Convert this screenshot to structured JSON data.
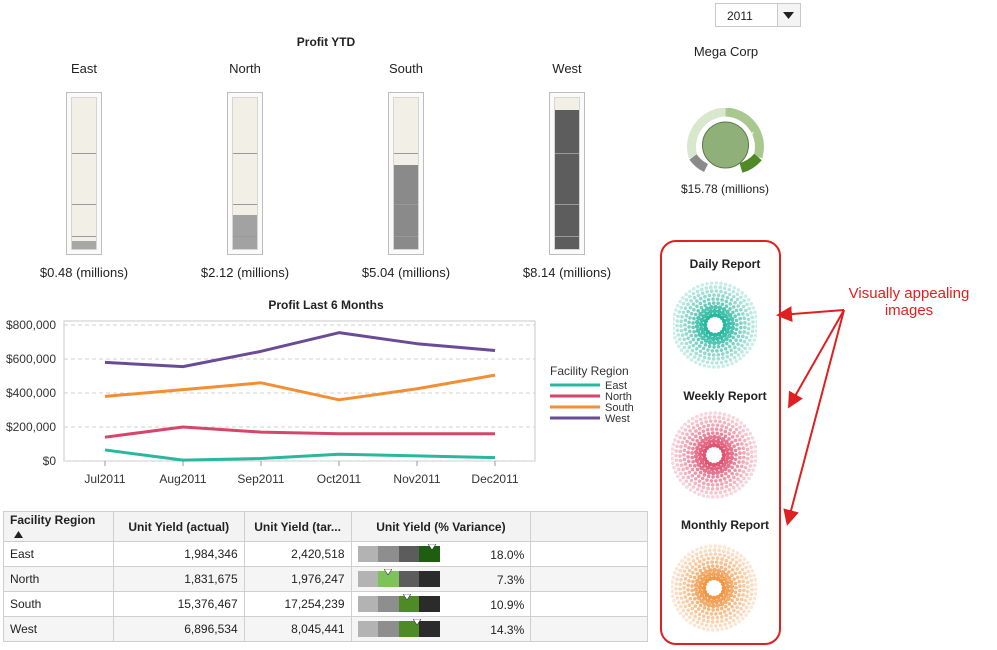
{
  "year_selector": {
    "value": "2011"
  },
  "company": {
    "name": "Mega Corp",
    "total_label": "$15.78 (millions)"
  },
  "profit_ytd": {
    "title": "Profit YTD",
    "regions": [
      {
        "name": "East",
        "label": "$0.48 (millions)",
        "fill": 0.05,
        "color": "#a7a7a7"
      },
      {
        "name": "North",
        "label": "$2.12 (millions)",
        "fill": 0.22,
        "color": "#a2a2a2"
      },
      {
        "name": "South",
        "label": "$5.04 (millions)",
        "fill": 0.55,
        "color": "#8a8a8a"
      },
      {
        "name": "West",
        "label": "$8.14 (millions)",
        "fill": 0.91,
        "color": "#5d5d5d"
      }
    ]
  },
  "chart_data": {
    "type": "line",
    "title": "Profit Last 6 Months",
    "categories": [
      "Jul2011",
      "Aug2011",
      "Sep2011",
      "Oct2011",
      "Nov2011",
      "Dec2011"
    ],
    "series": [
      {
        "name": "East",
        "color": "#2ab7a0",
        "values": [
          65000,
          5000,
          15000,
          40000,
          30000,
          20000
        ]
      },
      {
        "name": "North",
        "color": "#d5466a",
        "values": [
          140000,
          200000,
          170000,
          160000,
          160000,
          160000
        ]
      },
      {
        "name": "South",
        "color": "#f28e33",
        "values": [
          380000,
          420000,
          460000,
          360000,
          425000,
          505000
        ]
      },
      {
        "name": "West",
        "color": "#6a4c96",
        "values": [
          580000,
          555000,
          645000,
          755000,
          690000,
          650000
        ]
      }
    ],
    "yticks": [
      {
        "v": 0,
        "label": "$0"
      },
      {
        "v": 200000,
        "label": "$200,000"
      },
      {
        "v": 400000,
        "label": "$400,000"
      },
      {
        "v": 600000,
        "label": "$600,000"
      },
      {
        "v": 800000,
        "label": "$800,000"
      }
    ],
    "ylim": [
      0,
      800000
    ],
    "grid": true,
    "legend": {
      "title": "Facility Region",
      "position": "right"
    }
  },
  "table": {
    "columns": [
      "Facility Region",
      "Unit Yield (actual)",
      "Unit Yield (tar...",
      "Unit Yield (% Variance)"
    ],
    "rows": [
      {
        "region": "East",
        "actual": "1,984,346",
        "target": "2,420,518",
        "variance": "18.0%",
        "marker_pct": 0.9,
        "fill_color": "#1e5e10"
      },
      {
        "region": "North",
        "actual": "1,831,675",
        "target": "1,976,247",
        "variance": "7.3%",
        "marker_pct": 0.36,
        "fill_color": "#7ec25a"
      },
      {
        "region": "South",
        "actual": "15,376,467",
        "target": "17,254,239",
        "variance": "10.9%",
        "marker_pct": 0.6,
        "fill_color": "#4e8a26"
      },
      {
        "region": "West",
        "actual": "6,896,534",
        "target": "8,045,441",
        "variance": "14.3%",
        "marker_pct": 0.72,
        "fill_color": "#4e8a26"
      }
    ]
  },
  "reports": {
    "daily": {
      "title": "Daily Report",
      "color": "#20b49c"
    },
    "weekly": {
      "title": "Weekly Report",
      "color": "#df4d6d"
    },
    "monthly": {
      "title": "Monthly Report",
      "color": "#f0933e"
    }
  },
  "annotation": {
    "line1": "Visually appealing",
    "line2": "images",
    "color": "#e02020"
  },
  "icons": {
    "dropdown": "chevron-down-icon",
    "sort": "sort-ascending-icon"
  }
}
